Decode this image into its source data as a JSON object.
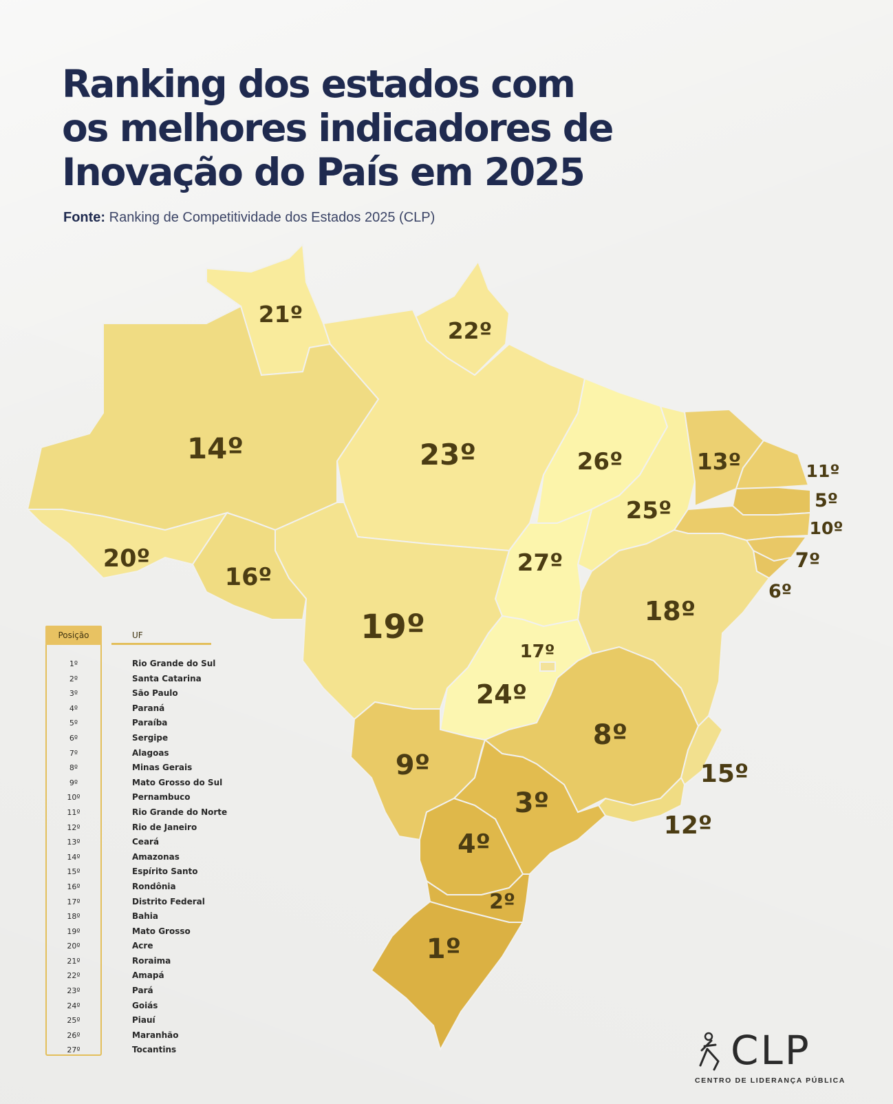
{
  "title_lines": [
    "Ranking dos estados com",
    "os melhores indicadores de",
    "Inovação do País em 2025"
  ],
  "source": {
    "label": "Fonte:",
    "text": "Ranking de Competitividade dos Estados 2025 (CLP)"
  },
  "map_labels": {
    "rr": "21º",
    "ap": "22º",
    "am": "14º",
    "pa": "23º",
    "ma": "26º",
    "ce": "13º",
    "rn": "11º",
    "pb": "5º",
    "pe": "10º",
    "al": "7º",
    "se": "6º",
    "pi": "25º",
    "ac": "20º",
    "ro": "16º",
    "mt": "19º",
    "to": "27º",
    "ba": "18º",
    "df": "17º",
    "go": "24º",
    "mg": "8º",
    "ms": "9º",
    "es": "15º",
    "sp": "3º",
    "rj": "12º",
    "pr": "4º",
    "sc": "2º",
    "rs": "1º"
  },
  "table": {
    "header_position": "Posição",
    "header_uf": "UF",
    "rows": [
      {
        "pos": "1º",
        "state": "Rio Grande do Sul"
      },
      {
        "pos": "2º",
        "state": "Santa Catarina"
      },
      {
        "pos": "3º",
        "state": "São Paulo"
      },
      {
        "pos": "4º",
        "state": "Paraná"
      },
      {
        "pos": "5º",
        "state": "Paraíba"
      },
      {
        "pos": "6º",
        "state": "Sergipe"
      },
      {
        "pos": "7º",
        "state": "Alagoas"
      },
      {
        "pos": "8º",
        "state": "Minas Gerais"
      },
      {
        "pos": "9º",
        "state": "Mato Grosso do Sul"
      },
      {
        "pos": "10º",
        "state": "Pernambuco"
      },
      {
        "pos": "11º",
        "state": "Rio Grande do Norte"
      },
      {
        "pos": "12º",
        "state": "Rio de Janeiro"
      },
      {
        "pos": "13º",
        "state": "Ceará"
      },
      {
        "pos": "14º",
        "state": "Amazonas"
      },
      {
        "pos": "15º",
        "state": "Espírito Santo"
      },
      {
        "pos": "16º",
        "state": "Rondônia"
      },
      {
        "pos": "17º",
        "state": "Distrito Federal"
      },
      {
        "pos": "18º",
        "state": "Bahia"
      },
      {
        "pos": "19º",
        "state": "Mato Grosso"
      },
      {
        "pos": "20º",
        "state": "Acre"
      },
      {
        "pos": "21º",
        "state": "Roraima"
      },
      {
        "pos": "22º",
        "state": "Amapá"
      },
      {
        "pos": "23º",
        "state": "Pará"
      },
      {
        "pos": "24º",
        "state": "Goiás"
      },
      {
        "pos": "25º",
        "state": "Piauí"
      },
      {
        "pos": "26º",
        "state": "Maranhão"
      },
      {
        "pos": "27º",
        "state": "Tocantins"
      }
    ]
  },
  "logo": {
    "word": "CLP",
    "subtitle": "CENTRO DE LIDERANÇA PÚBLICA"
  },
  "colors": {
    "title": "#1f2a4f",
    "accent": "#e3bf5b",
    "rank_top": "#ddb54a",
    "rank_mid": "#efd87f",
    "rank_low": "#fbf3a8"
  }
}
